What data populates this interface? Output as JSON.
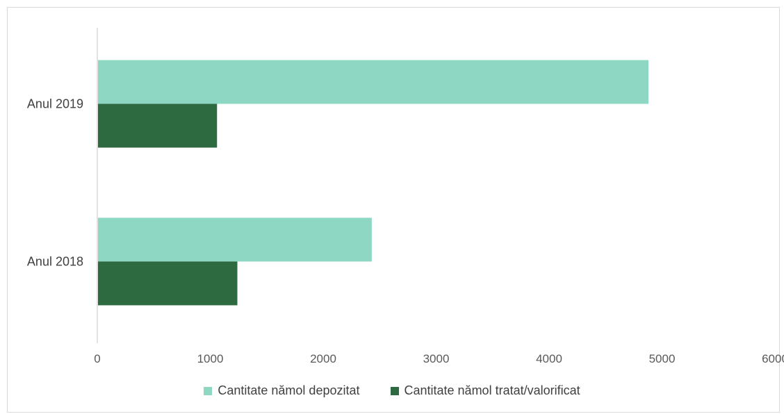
{
  "chart_data": {
    "type": "bar",
    "orientation": "horizontal",
    "categories": [
      "Anul 2019",
      "Anul 2018"
    ],
    "series": [
      {
        "name": "Cantitate nămol depozitat",
        "values": [
          4880,
          2430
        ],
        "color": "#8ed7c3"
      },
      {
        "name": "Cantitate nămol tratat/valorificat",
        "values": [
          1060,
          1240
        ],
        "color": "#2d6a3f"
      }
    ],
    "xlim": [
      0,
      6000
    ],
    "xticks": [
      "0",
      "1000",
      "2000",
      "3000",
      "4000",
      "5000",
      "6000"
    ],
    "grid": false,
    "legend_position": "bottom"
  }
}
